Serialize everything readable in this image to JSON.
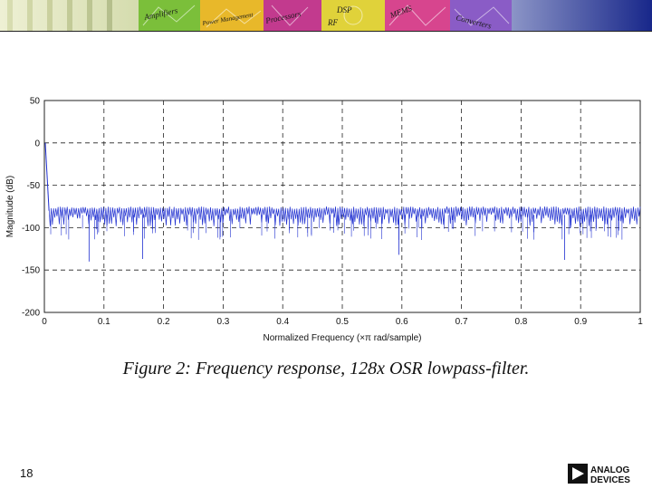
{
  "header": {
    "banner_panels": [
      "Amplifiers",
      "Power Management",
      "Processors",
      "DSP",
      "RF",
      "MEMS",
      "Converters"
    ],
    "colors": {
      "left_gradient": "#e9ecc9",
      "right_gradient": "#1a2a8e"
    }
  },
  "chart_data": {
    "type": "line",
    "xlabel": "Normalized Frequency  (×π rad/sample)",
    "ylabel": "Magnitude (dB)",
    "xlim": [
      0,
      1
    ],
    "ylim": [
      -200,
      50
    ],
    "x_ticks": [
      "0",
      "0.1",
      "0.2",
      "0.3",
      "0.4",
      "0.5",
      "0.6",
      "0.7",
      "0.8",
      "0.9",
      "1"
    ],
    "y_ticks": [
      "50",
      "0",
      "-50",
      "-100",
      "-150",
      "-200"
    ],
    "grid": "dashed",
    "line_color": "#1f2fd0",
    "passband": {
      "x": [
        0,
        0.0078
      ],
      "y": [
        0,
        -80
      ]
    },
    "stopband": {
      "x_range": [
        0.0078,
        1
      ],
      "upper_envelope_db": -75,
      "typical_floor_db": -100,
      "lowest_spikes": [
        {
          "x": 0.075,
          "y": -140
        },
        {
          "x": 0.165,
          "y": -137
        },
        {
          "x": 0.595,
          "y": -132
        },
        {
          "x": 0.873,
          "y": -138
        }
      ]
    }
  },
  "caption": "Figure 2: Frequency response, 128x OSR lowpass-filter.",
  "page_number": "18",
  "logo": {
    "line1": "ANALOG",
    "line2": "DEVICES"
  }
}
